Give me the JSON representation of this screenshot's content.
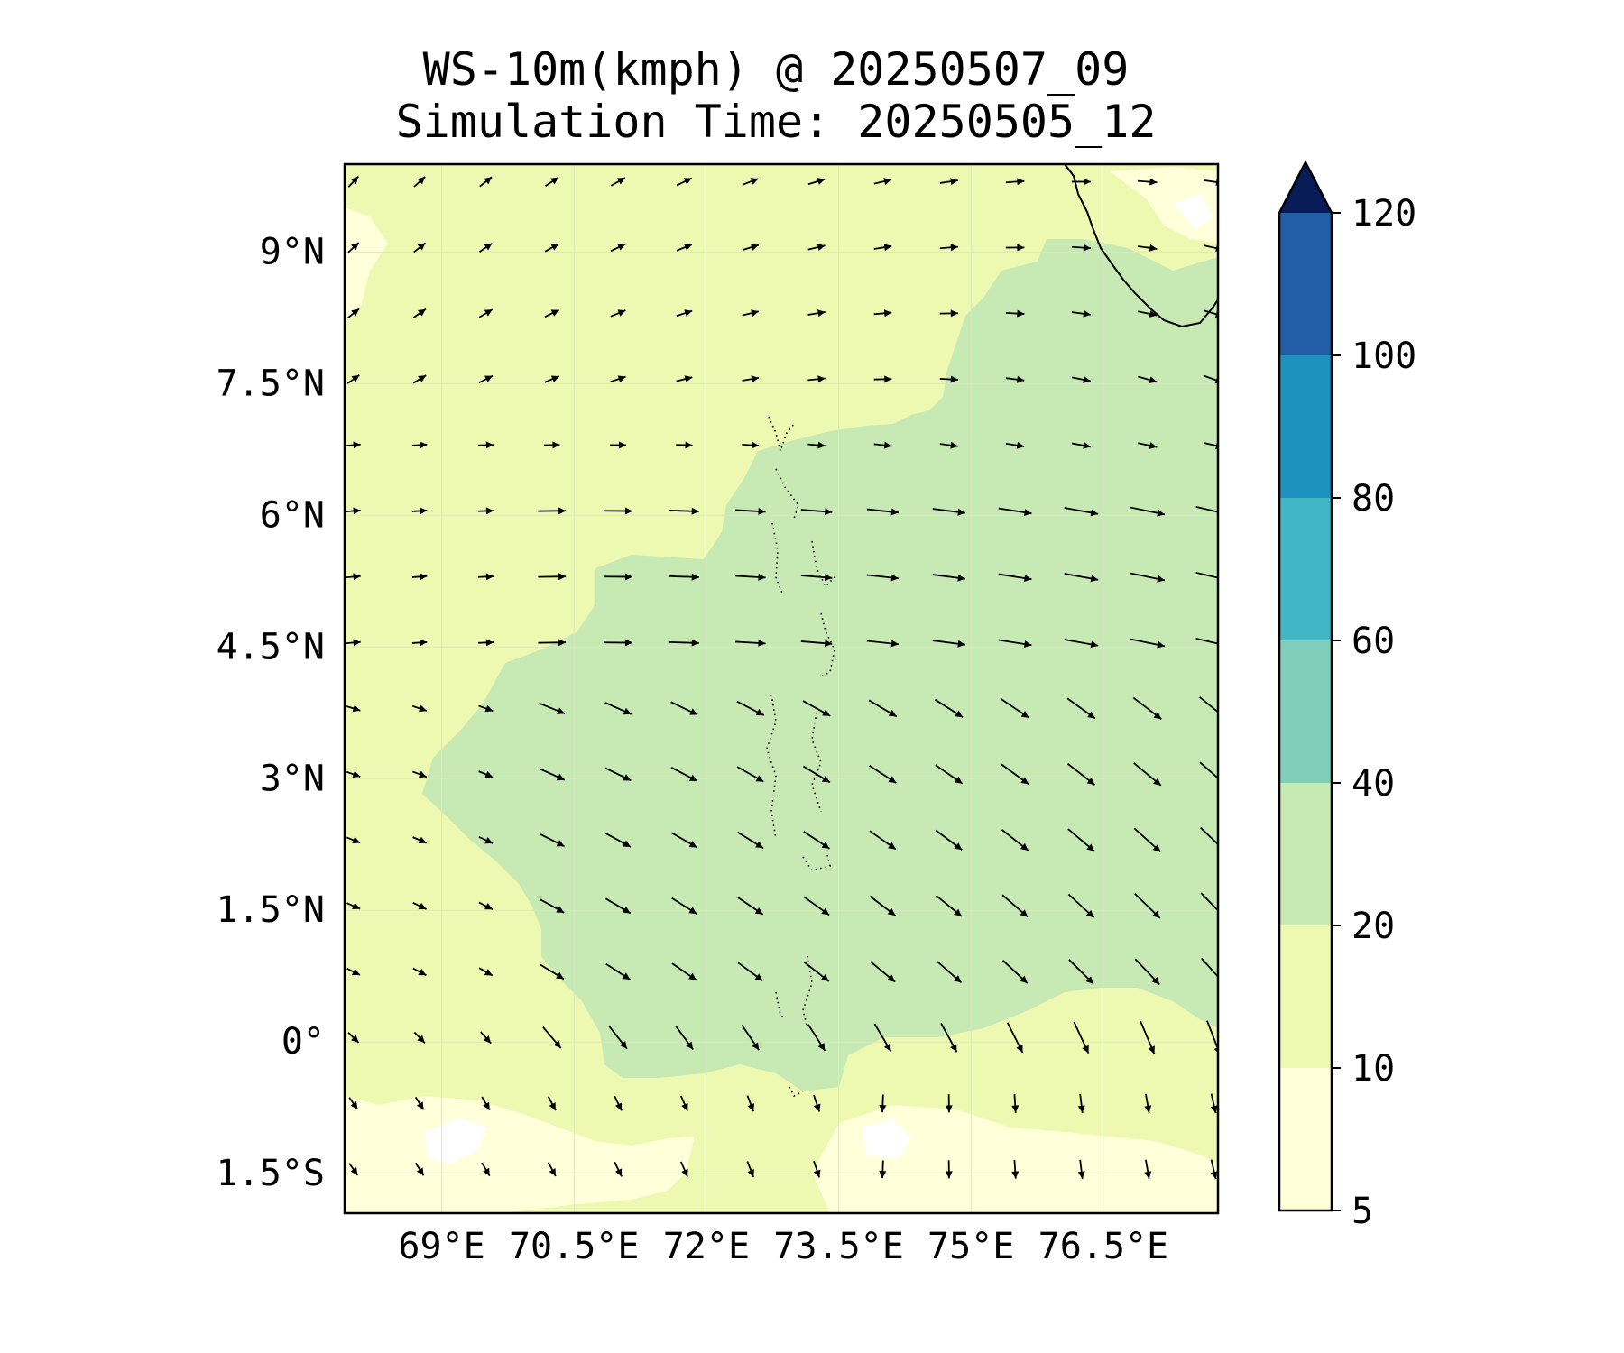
{
  "title": {
    "line1": "WS-10m(kmph) @ 20250507_09",
    "line2": "Simulation Time: 20250505_12"
  },
  "map": {
    "projection": "PlateCarree",
    "lon_range": [
      67.9,
      77.8
    ],
    "lat_range": [
      -1.95,
      10.0
    ],
    "lon_ticks": [
      {
        "value": 69.0,
        "label": "69°E"
      },
      {
        "value": 70.5,
        "label": "70.5°E"
      },
      {
        "value": 72.0,
        "label": "72°E"
      },
      {
        "value": 73.5,
        "label": "73.5°E"
      },
      {
        "value": 75.0,
        "label": "75°E"
      },
      {
        "value": 76.5,
        "label": "76.5°E"
      }
    ],
    "lat_ticks": [
      {
        "value": 9.0,
        "label": "9°N"
      },
      {
        "value": 7.5,
        "label": "7.5°N"
      },
      {
        "value": 6.0,
        "label": "6°N"
      },
      {
        "value": 4.5,
        "label": "4.5°N"
      },
      {
        "value": 3.0,
        "label": "3°N"
      },
      {
        "value": 1.5,
        "label": "1.5°N"
      },
      {
        "value": 0.0,
        "label": "0°"
      },
      {
        "value": -1.5,
        "label": "1.5°S"
      }
    ],
    "gridlines": true,
    "background_band_color": "#edf8b1",
    "coastline_color": "#000000"
  },
  "colorbar": {
    "levels": [
      5,
      10,
      20,
      40,
      60,
      80,
      100,
      120
    ],
    "tick_labels": [
      "5",
      "10",
      "20",
      "40",
      "60",
      "80",
      "100",
      "120"
    ],
    "colors": [
      "#ffffd9",
      "#edf8b1",
      "#c7e9b4",
      "#7fcdbb",
      "#41b6c4",
      "#1d91c0",
      "#225ea8",
      "#253494"
    ],
    "extend_color": "#081d58",
    "extend": "max",
    "orientation": "vertical"
  },
  "wind_field": {
    "lon_start": 68.0,
    "lon_step": 0.75,
    "lon_count": 14,
    "lat_start": 9.8,
    "lat_step": 0.75,
    "lat_count": 16,
    "units": "kmph"
  }
}
